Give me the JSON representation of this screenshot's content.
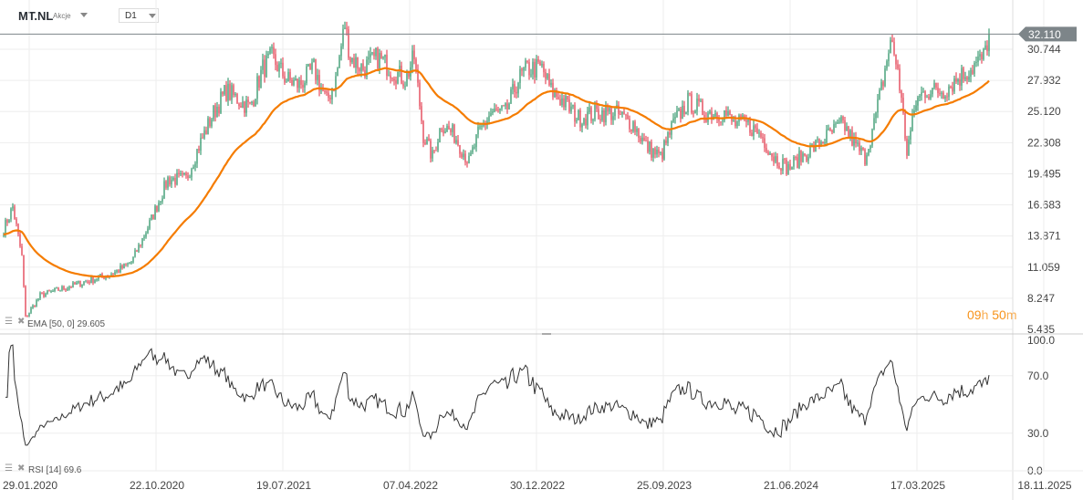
{
  "header": {
    "symbol": "MT.NL",
    "instrument_type": "Akcje",
    "timeframe": "D1"
  },
  "price_axis": {
    "ticks": [
      "30.744",
      "27.932",
      "25.120",
      "22.308",
      "19.495",
      "16.683",
      "13.871",
      "11.059",
      "8.247",
      "5.435"
    ],
    "current_price": "32.110"
  },
  "rsi_axis": {
    "ticks": [
      "100.0",
      "70.0",
      "30.0",
      "0.0"
    ]
  },
  "date_axis": {
    "ticks": [
      "29.01.2020",
      "22.10.2020",
      "19.07.2021",
      "07.04.2022",
      "30.12.2022",
      "25.09.2023",
      "21.06.2024",
      "17.03.2025",
      "18.11.2025"
    ]
  },
  "indicators": {
    "ema_label": "EMA [50, 0] 29.605",
    "rsi_label": "RSI [14] 69.6"
  },
  "timer": {
    "hours": "09",
    "h": "h",
    "minutes": "50",
    "m": "m"
  },
  "colors": {
    "up": "#1a8a5a",
    "down": "#e0283c",
    "ema": "#f57c00",
    "rsi": "#333333",
    "price_tag": "#7d8589"
  },
  "chart_data": {
    "type": "candlestick",
    "title": "MT.NL D1",
    "y_range": [
      5.435,
      32.11
    ],
    "rsi_range": [
      0,
      100
    ],
    "approx_price_path": [
      [
        0,
        14.5
      ],
      [
        5,
        16.5
      ],
      [
        10,
        12
      ],
      [
        12,
        6.5
      ],
      [
        20,
        8.5
      ],
      [
        30,
        9
      ],
      [
        40,
        9.5
      ],
      [
        50,
        10
      ],
      [
        60,
        10.5
      ],
      [
        70,
        11.5
      ],
      [
        80,
        15
      ],
      [
        90,
        19
      ],
      [
        100,
        19
      ],
      [
        107,
        22
      ],
      [
        115,
        25
      ],
      [
        122,
        27
      ],
      [
        130,
        26
      ],
      [
        135,
        25.5
      ],
      [
        142,
        29
      ],
      [
        147,
        30
      ],
      [
        155,
        28
      ],
      [
        162,
        27.5
      ],
      [
        170,
        29
      ],
      [
        177,
        26
      ],
      [
        182,
        28
      ],
      [
        187,
        33
      ],
      [
        190,
        30
      ],
      [
        197,
        29
      ],
      [
        205,
        30
      ],
      [
        212,
        29
      ],
      [
        220,
        28
      ],
      [
        225,
        30
      ],
      [
        230,
        23
      ],
      [
        235,
        21
      ],
      [
        240,
        24
      ],
      [
        247,
        23
      ],
      [
        255,
        20.5
      ],
      [
        260,
        23
      ],
      [
        267,
        25
      ],
      [
        275,
        25
      ],
      [
        282,
        28
      ],
      [
        287,
        29
      ],
      [
        295,
        29
      ],
      [
        300,
        27
      ],
      [
        307,
        26
      ],
      [
        315,
        24.5
      ],
      [
        325,
        25
      ],
      [
        335,
        25
      ],
      [
        345,
        24
      ],
      [
        352,
        22
      ],
      [
        360,
        21
      ],
      [
        367,
        24
      ],
      [
        375,
        26
      ],
      [
        385,
        25
      ],
      [
        395,
        25
      ],
      [
        400,
        24
      ],
      [
        407,
        24
      ],
      [
        415,
        23
      ],
      [
        422,
        21
      ],
      [
        430,
        20
      ],
      [
        437,
        21
      ],
      [
        445,
        22
      ],
      [
        452,
        23
      ],
      [
        460,
        24
      ],
      [
        467,
        22
      ],
      [
        472,
        21
      ],
      [
        477,
        24
      ],
      [
        482,
        28
      ],
      [
        486,
        31.5
      ],
      [
        490,
        29
      ],
      [
        495,
        21.5
      ],
      [
        500,
        26
      ],
      [
        505,
        27
      ],
      [
        515,
        27
      ],
      [
        522,
        28
      ],
      [
        530,
        29
      ],
      [
        537,
        30
      ],
      [
        540,
        32.11
      ]
    ]
  }
}
